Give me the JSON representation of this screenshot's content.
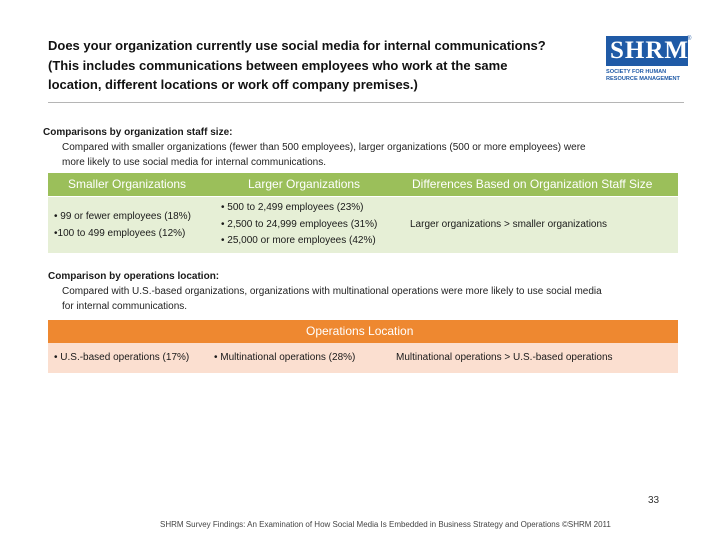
{
  "title": {
    "lines": [
      "Does your organization currently use social media for internal communications?",
      "(This includes communications between employees who work at the same",
      "location, different locations or work off company premises.)"
    ]
  },
  "logo": {
    "letters": "SHRM",
    "registered": "®",
    "sub_lines": [
      "SOCIETY FOR HUMAN",
      "RESOURCE MANAGEMENT"
    ]
  },
  "size_section": {
    "heading": "Comparisons by organization staff size:",
    "text_lines": [
      "Compared with smaller organizations (fewer than 500 employees), larger organizations (500 or more employees) were",
      "more likely to use social media for internal communications."
    ],
    "columns": [
      "Smaller Organizations",
      "Larger Organizations",
      "Differences Based on Organization Staff Size"
    ],
    "smaller": [
      "• 99 or fewer employees (18%)",
      "•100 to 499 employees (12%)"
    ],
    "larger": [
      "• 500 to 2,499 employees (23%)",
      "• 2,500 to 24,999 employees (31%)",
      "• 25,000 or more employees (42%)"
    ],
    "difference": "Larger organizations > smaller organizations"
  },
  "location_section": {
    "heading": "Comparison by operations location:",
    "text_lines": [
      "Compared with U.S.-based organizations, organizations with multinational operations were more likely to use social media",
      "for internal communications."
    ],
    "header": "Operations Location",
    "us": "• U.S.-based operations (17%)",
    "multi": "• Multinational operations (28%)",
    "difference": "Multinational operations > U.S.-based operations"
  },
  "page_number": "33",
  "footer": "SHRM Survey Findings: An Examination of How Social Media Is Embedded in Business Strategy and Operations ©SHRM 2011",
  "colors": {
    "green_header": "#9bbf5a",
    "green_body": "#e6efd6",
    "orange_header": "#ee8830",
    "orange_body": "#fbdfd0",
    "brand_blue": "#1f5aa6"
  }
}
